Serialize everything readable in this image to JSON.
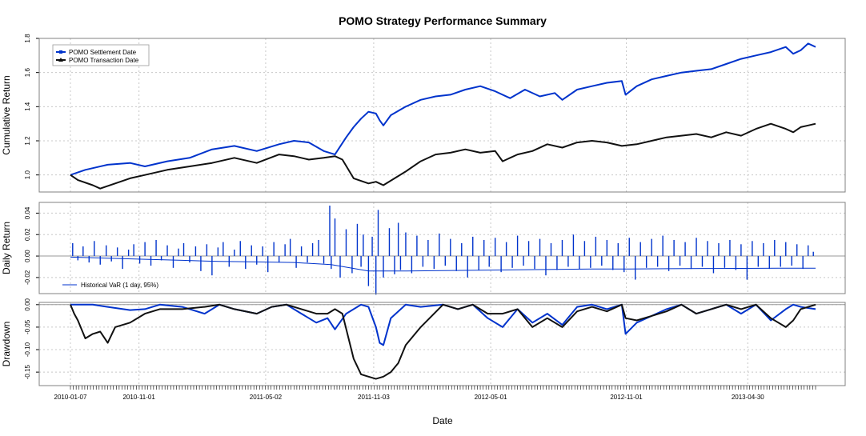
{
  "chart_data": {
    "type": "line",
    "title": "POMO Strategy Performance Summary",
    "xlabel": "Date",
    "x_ticks": [
      "2010-01-07",
      "2010-11-01",
      "2011-05-02",
      "2011-11-03",
      "2012-05-01",
      "2012-11-01",
      "2013-04-30"
    ],
    "x_tick_pos": [
      0.0,
      0.092,
      0.262,
      0.407,
      0.564,
      0.746,
      0.909
    ],
    "grid": true,
    "panels": [
      {
        "name": "cumulative",
        "ylabel": "Cumulative Return",
        "ylim": [
          0.9,
          1.8
        ],
        "yticks": [
          1.0,
          1.2,
          1.4,
          1.6,
          1.8
        ],
        "ytick_labels": [
          "1.0",
          "1.2",
          "1.4",
          "1.6",
          "1.8"
        ],
        "legend": {
          "position": "top-left",
          "entries": [
            {
              "label": "POMO Settlement Date",
              "color": "#0033cc"
            },
            {
              "label": "POMO Transaction Date",
              "color": "#111111"
            }
          ]
        },
        "series": [
          {
            "name": "POMO Settlement Date",
            "color": "#0033cc",
            "x": [
              0,
              0.02,
              0.05,
              0.08,
              0.1,
              0.13,
              0.16,
              0.19,
              0.22,
              0.25,
              0.28,
              0.3,
              0.32,
              0.34,
              0.355,
              0.37,
              0.38,
              0.39,
              0.4,
              0.41,
              0.415,
              0.42,
              0.43,
              0.45,
              0.47,
              0.49,
              0.51,
              0.53,
              0.55,
              0.57,
              0.59,
              0.61,
              0.63,
              0.65,
              0.66,
              0.68,
              0.7,
              0.72,
              0.74,
              0.745,
              0.76,
              0.78,
              0.8,
              0.82,
              0.84,
              0.86,
              0.88,
              0.9,
              0.92,
              0.94,
              0.96,
              0.97,
              0.98,
              0.99,
              1.0
            ],
            "y": [
              1.0,
              1.03,
              1.06,
              1.07,
              1.05,
              1.08,
              1.1,
              1.15,
              1.17,
              1.14,
              1.18,
              1.2,
              1.19,
              1.14,
              1.12,
              1.22,
              1.28,
              1.33,
              1.37,
              1.36,
              1.32,
              1.29,
              1.35,
              1.4,
              1.44,
              1.46,
              1.47,
              1.5,
              1.52,
              1.49,
              1.45,
              1.5,
              1.46,
              1.48,
              1.44,
              1.5,
              1.52,
              1.54,
              1.55,
              1.47,
              1.52,
              1.56,
              1.58,
              1.6,
              1.61,
              1.62,
              1.65,
              1.68,
              1.7,
              1.72,
              1.75,
              1.71,
              1.73,
              1.77,
              1.75
            ]
          },
          {
            "name": "POMO Transaction Date",
            "color": "#111111",
            "x": [
              0,
              0.01,
              0.03,
              0.04,
              0.06,
              0.08,
              0.1,
              0.13,
              0.16,
              0.19,
              0.22,
              0.25,
              0.28,
              0.3,
              0.32,
              0.34,
              0.355,
              0.365,
              0.38,
              0.4,
              0.41,
              0.42,
              0.45,
              0.47,
              0.49,
              0.51,
              0.53,
              0.55,
              0.57,
              0.58,
              0.6,
              0.62,
              0.64,
              0.66,
              0.68,
              0.7,
              0.72,
              0.74,
              0.76,
              0.78,
              0.8,
              0.82,
              0.84,
              0.86,
              0.88,
              0.9,
              0.92,
              0.94,
              0.96,
              0.97,
              0.98,
              0.99,
              1.0
            ],
            "y": [
              1.0,
              0.97,
              0.94,
              0.92,
              0.95,
              0.98,
              1.0,
              1.03,
              1.05,
              1.07,
              1.1,
              1.07,
              1.12,
              1.11,
              1.09,
              1.1,
              1.11,
              1.09,
              0.98,
              0.95,
              0.96,
              0.94,
              1.02,
              1.08,
              1.12,
              1.13,
              1.15,
              1.13,
              1.14,
              1.08,
              1.12,
              1.14,
              1.18,
              1.16,
              1.19,
              1.2,
              1.19,
              1.17,
              1.18,
              1.2,
              1.22,
              1.23,
              1.24,
              1.22,
              1.25,
              1.23,
              1.27,
              1.3,
              1.27,
              1.25,
              1.28,
              1.29,
              1.3
            ]
          }
        ]
      },
      {
        "name": "daily",
        "ylabel": "Daily Return",
        "ylim": [
          -0.035,
          0.05
        ],
        "yticks": [
          -0.02,
          0.0,
          0.02,
          0.04
        ],
        "ytick_labels": [
          "-0.02",
          "0.00",
          "0.02",
          "0.04"
        ],
        "legend": {
          "position": "bottom-left",
          "entries": [
            {
              "label": "Historical VaR (1 day, 95%)",
              "color": "#0033cc"
            }
          ]
        },
        "bars": {
          "name": "Daily Return",
          "color": "#0033cc",
          "x": [
            0.003,
            0.01,
            0.017,
            0.025,
            0.032,
            0.04,
            0.048,
            0.055,
            0.063,
            0.07,
            0.078,
            0.085,
            0.093,
            0.1,
            0.108,
            0.115,
            0.122,
            0.13,
            0.138,
            0.145,
            0.152,
            0.16,
            0.168,
            0.175,
            0.183,
            0.19,
            0.198,
            0.205,
            0.213,
            0.22,
            0.228,
            0.235,
            0.243,
            0.25,
            0.258,
            0.265,
            0.273,
            0.28,
            0.288,
            0.295,
            0.303,
            0.31,
            0.318,
            0.325,
            0.333,
            0.34,
            0.348,
            0.35,
            0.355,
            0.362,
            0.37,
            0.378,
            0.385,
            0.39,
            0.393,
            0.4,
            0.405,
            0.41,
            0.413,
            0.42,
            0.428,
            0.435,
            0.44,
            0.443,
            0.45,
            0.458,
            0.465,
            0.473,
            0.48,
            0.488,
            0.495,
            0.503,
            0.51,
            0.518,
            0.525,
            0.533,
            0.54,
            0.548,
            0.555,
            0.562,
            0.57,
            0.578,
            0.585,
            0.593,
            0.6,
            0.608,
            0.615,
            0.623,
            0.63,
            0.638,
            0.645,
            0.653,
            0.66,
            0.668,
            0.675,
            0.683,
            0.69,
            0.698,
            0.705,
            0.713,
            0.72,
            0.728,
            0.735,
            0.743,
            0.75,
            0.758,
            0.765,
            0.773,
            0.78,
            0.788,
            0.795,
            0.803,
            0.81,
            0.818,
            0.825,
            0.833,
            0.84,
            0.848,
            0.855,
            0.863,
            0.87,
            0.878,
            0.885,
            0.893,
            0.9,
            0.908,
            0.915,
            0.923,
            0.93,
            0.938,
            0.945,
            0.953,
            0.96,
            0.968,
            0.975,
            0.983,
            0.99,
            0.997
          ],
          "y": [
            0.012,
            -0.004,
            0.009,
            -0.006,
            0.014,
            -0.008,
            0.01,
            -0.005,
            0.008,
            -0.012,
            0.006,
            0.011,
            -0.007,
            0.013,
            -0.009,
            0.015,
            -0.004,
            0.01,
            -0.011,
            0.007,
            0.012,
            -0.006,
            0.009,
            -0.014,
            0.011,
            -0.018,
            0.008,
            0.013,
            -0.01,
            0.006,
            0.014,
            -0.012,
            0.01,
            -0.008,
            0.009,
            -0.015,
            0.013,
            -0.006,
            0.011,
            0.016,
            -0.011,
            0.009,
            -0.006,
            0.012,
            0.015,
            -0.007,
            0.047,
            -0.012,
            0.035,
            -0.02,
            0.025,
            -0.016,
            0.03,
            -0.01,
            0.02,
            -0.028,
            0.018,
            -0.036,
            0.043,
            -0.02,
            0.026,
            -0.017,
            0.031,
            -0.013,
            0.022,
            -0.016,
            0.019,
            -0.01,
            0.015,
            -0.012,
            0.021,
            -0.009,
            0.016,
            -0.014,
            0.012,
            -0.02,
            0.018,
            -0.013,
            0.015,
            -0.01,
            0.017,
            -0.015,
            0.013,
            -0.011,
            0.019,
            -0.009,
            0.014,
            -0.012,
            0.016,
            -0.018,
            0.012,
            -0.013,
            0.015,
            -0.01,
            0.02,
            -0.012,
            0.014,
            -0.011,
            0.018,
            -0.009,
            0.015,
            -0.013,
            0.012,
            -0.015,
            0.017,
            -0.022,
            0.013,
            -0.011,
            0.016,
            -0.01,
            0.019,
            -0.014,
            0.015,
            -0.009,
            0.013,
            -0.012,
            0.017,
            -0.01,
            0.014,
            -0.016,
            0.012,
            -0.011,
            0.015,
            -0.013,
            0.011,
            -0.022,
            0.014,
            -0.01,
            0.012,
            -0.012,
            0.015,
            -0.01,
            0.013,
            -0.009,
            0.011,
            -0.012,
            0.01,
            0.004
          ]
        },
        "series": [
          {
            "name": "Historical VaR (1 day, 95%)",
            "color": "#0033cc",
            "x": [
              0,
              0.05,
              0.1,
              0.15,
              0.2,
              0.25,
              0.3,
              0.35,
              0.4,
              0.45,
              0.5,
              0.55,
              0.6,
              0.65,
              0.7,
              0.75,
              0.8,
              0.85,
              0.9,
              0.95,
              1.0
            ],
            "y": [
              -0.001,
              -0.002,
              -0.003,
              -0.004,
              -0.005,
              -0.0055,
              -0.006,
              -0.008,
              -0.014,
              -0.014,
              -0.0135,
              -0.0132,
              -0.0128,
              -0.0124,
              -0.012,
              -0.012,
              -0.0118,
              -0.0116,
              -0.0115,
              -0.0114,
              -0.0113
            ]
          }
        ]
      },
      {
        "name": "drawdown",
        "ylabel": "Drawdown",
        "ylim": [
          -0.18,
          0.005
        ],
        "yticks": [
          0.0,
          -0.05,
          -0.1,
          -0.15
        ],
        "ytick_labels": [
          "0.00",
          "-0.05",
          "-0.10",
          "-0.15"
        ],
        "series": [
          {
            "name": "POMO Settlement Date",
            "color": "#0033cc",
            "x": [
              0,
              0.03,
              0.05,
              0.08,
              0.1,
              0.12,
              0.15,
              0.18,
              0.2,
              0.22,
              0.25,
              0.27,
              0.29,
              0.31,
              0.33,
              0.345,
              0.355,
              0.37,
              0.39,
              0.4,
              0.41,
              0.415,
              0.42,
              0.43,
              0.45,
              0.47,
              0.5,
              0.52,
              0.54,
              0.56,
              0.58,
              0.6,
              0.62,
              0.64,
              0.66,
              0.68,
              0.7,
              0.72,
              0.74,
              0.745,
              0.76,
              0.78,
              0.8,
              0.82,
              0.84,
              0.86,
              0.88,
              0.9,
              0.92,
              0.94,
              0.96,
              0.97,
              0.98,
              1.0
            ],
            "y": [
              0,
              0,
              -0.005,
              -0.012,
              -0.01,
              0,
              -0.005,
              -0.02,
              0,
              -0.01,
              -0.02,
              -0.005,
              0,
              -0.02,
              -0.04,
              -0.03,
              -0.055,
              -0.02,
              0,
              -0.005,
              -0.05,
              -0.085,
              -0.09,
              -0.03,
              0,
              -0.005,
              0,
              -0.01,
              0,
              -0.03,
              -0.05,
              -0.01,
              -0.04,
              -0.02,
              -0.045,
              -0.005,
              0,
              -0.01,
              0,
              -0.065,
              -0.04,
              -0.025,
              -0.01,
              0,
              -0.02,
              -0.01,
              0,
              -0.02,
              0,
              -0.035,
              -0.01,
              0,
              -0.005,
              -0.01
            ]
          },
          {
            "name": "POMO Transaction Date",
            "color": "#111111",
            "x": [
              0,
              0.005,
              0.01,
              0.02,
              0.03,
              0.04,
              0.05,
              0.06,
              0.08,
              0.1,
              0.12,
              0.15,
              0.18,
              0.2,
              0.22,
              0.25,
              0.27,
              0.29,
              0.31,
              0.33,
              0.345,
              0.355,
              0.365,
              0.38,
              0.39,
              0.4,
              0.41,
              0.42,
              0.43,
              0.44,
              0.45,
              0.47,
              0.5,
              0.52,
              0.54,
              0.56,
              0.58,
              0.6,
              0.62,
              0.64,
              0.66,
              0.68,
              0.7,
              0.72,
              0.74,
              0.745,
              0.76,
              0.78,
              0.8,
              0.82,
              0.84,
              0.86,
              0.88,
              0.9,
              0.92,
              0.94,
              0.96,
              0.97,
              0.98,
              1.0
            ],
            "y": [
              0,
              -0.02,
              -0.035,
              -0.075,
              -0.065,
              -0.06,
              -0.085,
              -0.05,
              -0.04,
              -0.02,
              -0.01,
              -0.01,
              -0.005,
              0,
              -0.01,
              -0.02,
              -0.005,
              0,
              -0.01,
              -0.02,
              -0.02,
              -0.01,
              -0.02,
              -0.12,
              -0.155,
              -0.16,
              -0.165,
              -0.16,
              -0.15,
              -0.13,
              -0.09,
              -0.05,
              0,
              -0.01,
              0,
              -0.02,
              -0.02,
              -0.01,
              -0.05,
              -0.03,
              -0.05,
              -0.015,
              -0.005,
              -0.015,
              0,
              -0.03,
              -0.035,
              -0.025,
              -0.015,
              0,
              -0.02,
              -0.01,
              0,
              -0.01,
              0,
              -0.03,
              -0.05,
              -0.035,
              -0.01,
              0
            ]
          }
        ]
      }
    ]
  }
}
